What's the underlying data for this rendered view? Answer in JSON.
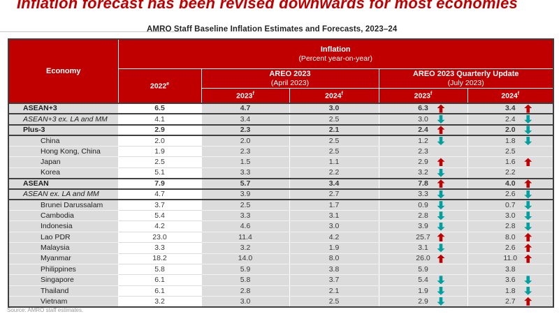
{
  "slide": {
    "title": "Inflation forecast has been revised downwards for most economies",
    "source": "Source: AMRO staff estimates."
  },
  "colors": {
    "header_red": "#C00000",
    "arrow_up_red": "#C00000",
    "arrow_down_teal": "#00A0A0",
    "row_gray": "#DCDCDC",
    "border_dark": "#3F3F3F",
    "title_red": "#C00000"
  },
  "table": {
    "title": "AMRO Staff Baseline Inflation Estimates and Forecasts, 2023–24",
    "header": {
      "economy": "Economy",
      "inflation_line1": "Inflation",
      "inflation_line2": "(Percent year-on-year)",
      "col_2022": {
        "text": "2022",
        "sup": "e"
      },
      "areo": {
        "line1": "AREO 2023",
        "line2": "(April 2023)"
      },
      "areo_qu": {
        "line1": "AREO 2023 Quarterly Update",
        "line2": "(July 2023)"
      },
      "year_cols": [
        {
          "text": "2023",
          "sup": "f"
        },
        {
          "text": "2024",
          "sup": "f"
        },
        {
          "text": "2023",
          "sup": "f"
        },
        {
          "text": "2024",
          "sup": "f"
        }
      ]
    },
    "rows": [
      {
        "economy": "ASEAN+3",
        "tier": "bold",
        "v2022": "6.5",
        "apr2023": "4.7",
        "apr2024": "3.0",
        "jul2023": {
          "v": "6.3",
          "arrow": "up"
        },
        "jul2024": {
          "v": "3.4",
          "arrow": "up"
        }
      },
      {
        "economy": "ASEAN+3 ex. LA and MM",
        "tier": "italic",
        "v2022": "4.1",
        "apr2023": "3.4",
        "apr2024": "2.5",
        "jul2023": {
          "v": "3.0",
          "arrow": "down"
        },
        "jul2024": {
          "v": "2.4",
          "arrow": "down"
        }
      },
      {
        "economy": "Plus-3",
        "tier": "bold",
        "v2022": "2.9",
        "apr2023": "2.3",
        "apr2024": "2.1",
        "jul2023": {
          "v": "2.4",
          "arrow": "up"
        },
        "jul2024": {
          "v": "2.0",
          "arrow": "down"
        }
      },
      {
        "economy": "China",
        "tier": "plain",
        "v2022": "2.0",
        "apr2023": "2.0",
        "apr2024": "2.5",
        "jul2023": {
          "v": "1.2",
          "arrow": "down"
        },
        "jul2024": {
          "v": "1.8",
          "arrow": "down"
        }
      },
      {
        "economy": "Hong Kong, China",
        "tier": "plain",
        "v2022": "1.9",
        "apr2023": "2.3",
        "apr2024": "2.5",
        "jul2023": {
          "v": "2.3",
          "arrow": "none"
        },
        "jul2024": {
          "v": "2.5",
          "arrow": "none"
        }
      },
      {
        "economy": "Japan",
        "tier": "plain",
        "v2022": "2.5",
        "apr2023": "1.5",
        "apr2024": "1.1",
        "jul2023": {
          "v": "2.9",
          "arrow": "up"
        },
        "jul2024": {
          "v": "1.6",
          "arrow": "up"
        }
      },
      {
        "economy": "Korea",
        "tier": "plain",
        "v2022": "5.1",
        "apr2023": "3.3",
        "apr2024": "2.2",
        "jul2023": {
          "v": "3.2",
          "arrow": "down"
        },
        "jul2024": {
          "v": "2.2",
          "arrow": "none"
        }
      },
      {
        "economy": "ASEAN",
        "tier": "bold",
        "v2022": "7.9",
        "apr2023": "5.7",
        "apr2024": "3.4",
        "jul2023": {
          "v": "7.8",
          "arrow": "up"
        },
        "jul2024": {
          "v": "4.0",
          "arrow": "up"
        }
      },
      {
        "economy": "ASEAN ex. LA and MM",
        "tier": "italic",
        "v2022": "4.7",
        "apr2023": "3.9",
        "apr2024": "2.7",
        "jul2023": {
          "v": "3.3",
          "arrow": "down"
        },
        "jul2024": {
          "v": "2.6",
          "arrow": "down"
        }
      },
      {
        "economy": "Brunei Darussalam",
        "tier": "plain",
        "v2022": "3.7",
        "apr2023": "2.5",
        "apr2024": "1.7",
        "jul2023": {
          "v": "0.9",
          "arrow": "down"
        },
        "jul2024": {
          "v": "0.7",
          "arrow": "down"
        }
      },
      {
        "economy": "Cambodia",
        "tier": "plain",
        "v2022": "5.4",
        "apr2023": "3.3",
        "apr2024": "3.1",
        "jul2023": {
          "v": "2.8",
          "arrow": "down"
        },
        "jul2024": {
          "v": "3.0",
          "arrow": "down"
        }
      },
      {
        "economy": "Indonesia",
        "tier": "plain",
        "v2022": "4.2",
        "apr2023": "4.6",
        "apr2024": "3.0",
        "jul2023": {
          "v": "3.9",
          "arrow": "down"
        },
        "jul2024": {
          "v": "2.8",
          "arrow": "down"
        }
      },
      {
        "economy": "Lao PDR",
        "tier": "plain",
        "v2022": "23.0",
        "apr2023": "11.4",
        "apr2024": "4.2",
        "jul2023": {
          "v": "25.7",
          "arrow": "up"
        },
        "jul2024": {
          "v": "8.0",
          "arrow": "up"
        }
      },
      {
        "economy": "Malaysia",
        "tier": "plain",
        "v2022": "3.3",
        "apr2023": "3.2",
        "apr2024": "1.9",
        "jul2023": {
          "v": "3.1",
          "arrow": "down"
        },
        "jul2024": {
          "v": "2.6",
          "arrow": "up"
        }
      },
      {
        "economy": "Myanmar",
        "tier": "plain",
        "v2022": "18.2",
        "apr2023": "14.0",
        "apr2024": "8.0",
        "jul2023": {
          "v": "26.0",
          "arrow": "up"
        },
        "jul2024": {
          "v": "11.0",
          "arrow": "up"
        }
      },
      {
        "economy": "Philippines",
        "tier": "plain",
        "v2022": "5.8",
        "apr2023": "5.9",
        "apr2024": "3.8",
        "jul2023": {
          "v": "5.9",
          "arrow": "none"
        },
        "jul2024": {
          "v": "3.8",
          "arrow": "none"
        }
      },
      {
        "economy": "Singapore",
        "tier": "plain",
        "v2022": "6.1",
        "apr2023": "5.8",
        "apr2024": "3.7",
        "jul2023": {
          "v": "5.4",
          "arrow": "down"
        },
        "jul2024": {
          "v": "3.6",
          "arrow": "down"
        }
      },
      {
        "economy": "Thailand",
        "tier": "plain",
        "v2022": "6.1",
        "apr2023": "2.8",
        "apr2024": "2.1",
        "jul2023": {
          "v": "1.9",
          "arrow": "down"
        },
        "jul2024": {
          "v": "1.8",
          "arrow": "down"
        }
      },
      {
        "economy": "Vietnam",
        "tier": "plain",
        "v2022": "3.2",
        "apr2023": "3.0",
        "apr2024": "2.5",
        "jul2023": {
          "v": "2.9",
          "arrow": "down"
        },
        "jul2024": {
          "v": "2.7",
          "arrow": "up"
        }
      }
    ]
  }
}
